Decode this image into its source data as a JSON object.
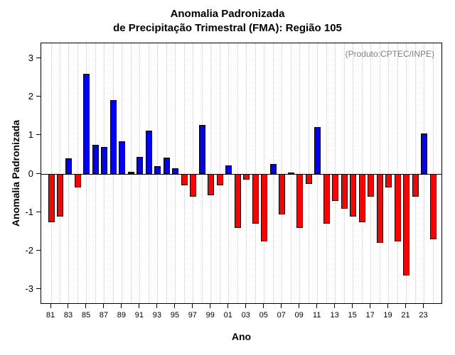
{
  "chart_data": {
    "type": "bar",
    "title_line1": "Anomalia Padronizada",
    "title_line2": "de Precipitação Trimestral (FMA): Região 105",
    "annotation": "(Produto:CPTEC/INPE)",
    "xlabel": "Ano",
    "ylabel": "Anomalia Padronizada",
    "ylim": [
      -3.4,
      3.4
    ],
    "yticks": [
      -3,
      -2,
      -1,
      0,
      1,
      2,
      3
    ],
    "ytick_labels": [
      "-3",
      "-2",
      "-1",
      "0",
      "1",
      "2",
      "3"
    ],
    "grid": true,
    "legend": "none",
    "categories": [
      1981,
      1982,
      1983,
      1984,
      1985,
      1986,
      1987,
      1988,
      1989,
      1990,
      1991,
      1992,
      1993,
      1994,
      1995,
      1996,
      1997,
      1998,
      1999,
      2000,
      2001,
      2002,
      2003,
      2004,
      2005,
      2006,
      2007,
      2008,
      2009,
      2010,
      2011,
      2012,
      2013,
      2014,
      2015,
      2016,
      2017,
      2018,
      2019,
      2020,
      2021,
      2022,
      2023,
      2024
    ],
    "values": [
      -1.25,
      -1.1,
      0.4,
      -0.35,
      2.6,
      0.75,
      0.7,
      1.92,
      0.85,
      0.05,
      0.45,
      1.12,
      0.2,
      0.42,
      0.15,
      -0.3,
      -0.6,
      1.27,
      -0.55,
      -0.3,
      0.22,
      -1.4,
      -0.15,
      -1.3,
      -1.75,
      0.25,
      -1.05,
      0.03,
      -1.4,
      -0.25,
      1.22,
      -1.3,
      -0.7,
      -0.9,
      -1.1,
      -1.25,
      -0.6,
      -1.8,
      -0.35,
      -1.75,
      -2.65,
      -0.6,
      1.05,
      -1.7
    ],
    "xtick_indices": [
      0,
      2,
      4,
      6,
      8,
      10,
      12,
      14,
      16,
      18,
      20,
      22,
      24,
      26,
      28,
      30,
      32,
      34,
      36,
      38,
      40,
      42
    ],
    "xtick_labels": [
      "81",
      "83",
      "85",
      "87",
      "89",
      "91",
      "93",
      "95",
      "97",
      "99",
      "01",
      "03",
      "05",
      "07",
      "09",
      "11",
      "13",
      "15",
      "17",
      "19",
      "21",
      "23"
    ],
    "colors": {
      "positive": "#0000ff",
      "negative": "#ff0000",
      "bar_border": "#000000",
      "annotation": "#808080",
      "gridline": "#c8c8c8"
    }
  }
}
